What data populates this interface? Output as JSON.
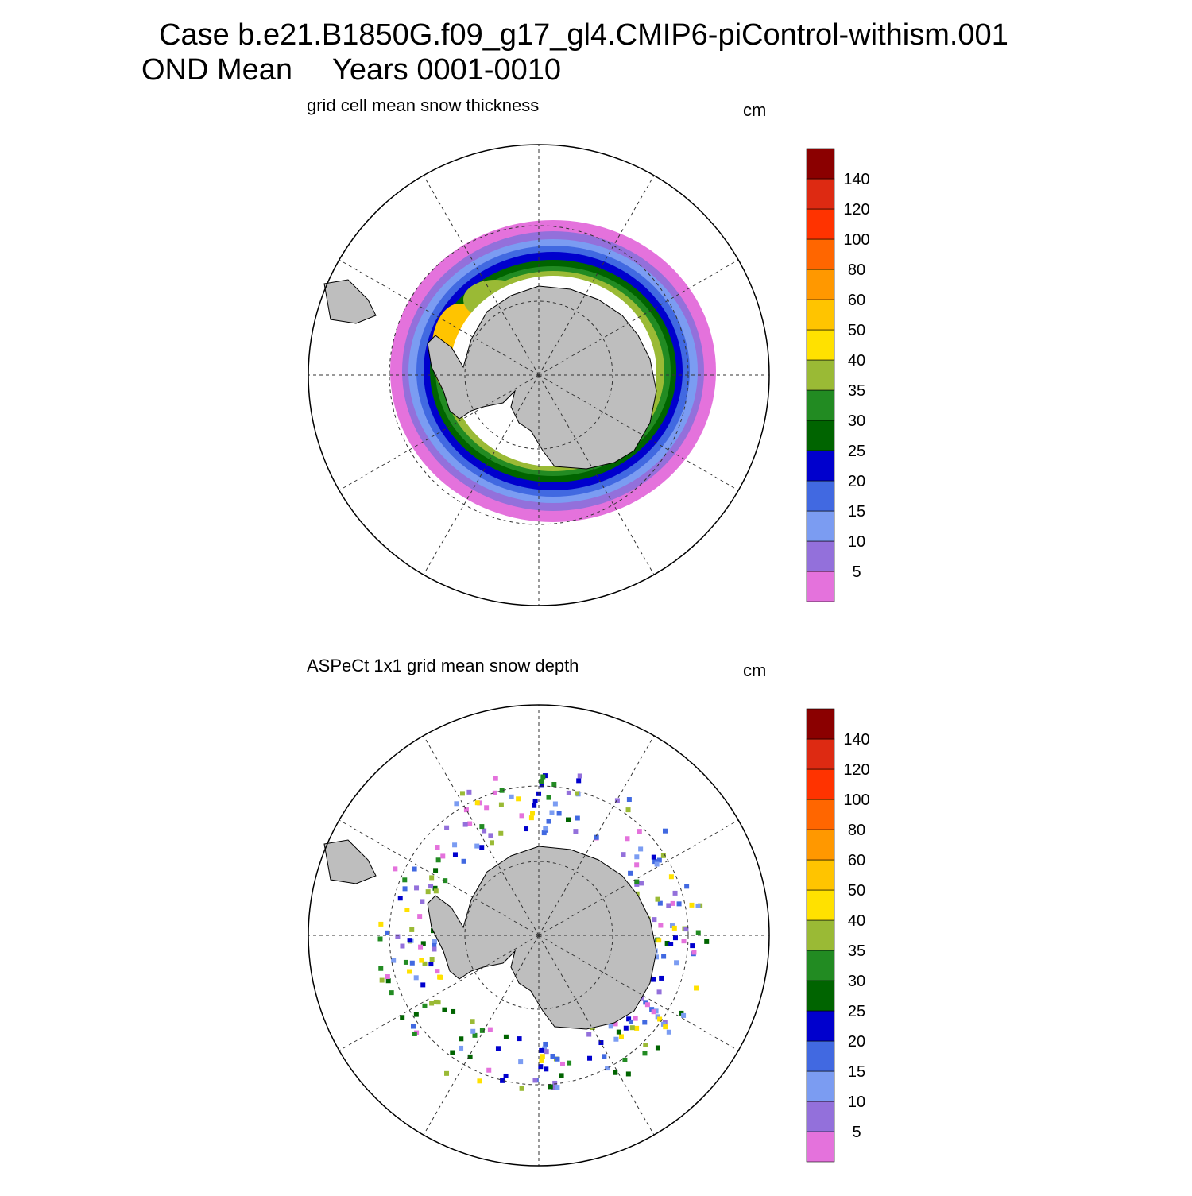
{
  "title": {
    "case": "Case b.e21.B1850G.f09_g17_gl4.CMIP6-piControl-withism.001",
    "season": "OND Mean",
    "years": "Years 0001-0010"
  },
  "panels": [
    {
      "subtitle": "grid cell mean snow thickness",
      "units": "cm",
      "colorbar": {
        "levels": [
          5,
          10,
          15,
          20,
          25,
          30,
          35,
          40,
          50,
          60,
          80,
          100,
          120,
          140
        ],
        "colors": [
          "#e472dc",
          "#9370db",
          "#7b9cf2",
          "#4169e1",
          "#0000cd",
          "#006400",
          "#228b22",
          "#9aba35",
          "#ffe100",
          "#ffc400",
          "#ff9800",
          "#ff6600",
          "#ff3300",
          "#dd2a12",
          "#8b0000"
        ]
      }
    },
    {
      "subtitle": "ASPeCt 1x1 grid mean snow depth",
      "units": "cm",
      "colorbar": {
        "levels": [
          5,
          10,
          15,
          20,
          25,
          30,
          35,
          40,
          50,
          60,
          80,
          100,
          120,
          140
        ],
        "colors": [
          "#e472dc",
          "#9370db",
          "#7b9cf2",
          "#4169e1",
          "#0000cd",
          "#006400",
          "#228b22",
          "#9aba35",
          "#ffe100",
          "#ffc400",
          "#ff9800",
          "#ff6600",
          "#ff3300",
          "#dd2a12",
          "#8b0000"
        ]
      }
    }
  ]
}
